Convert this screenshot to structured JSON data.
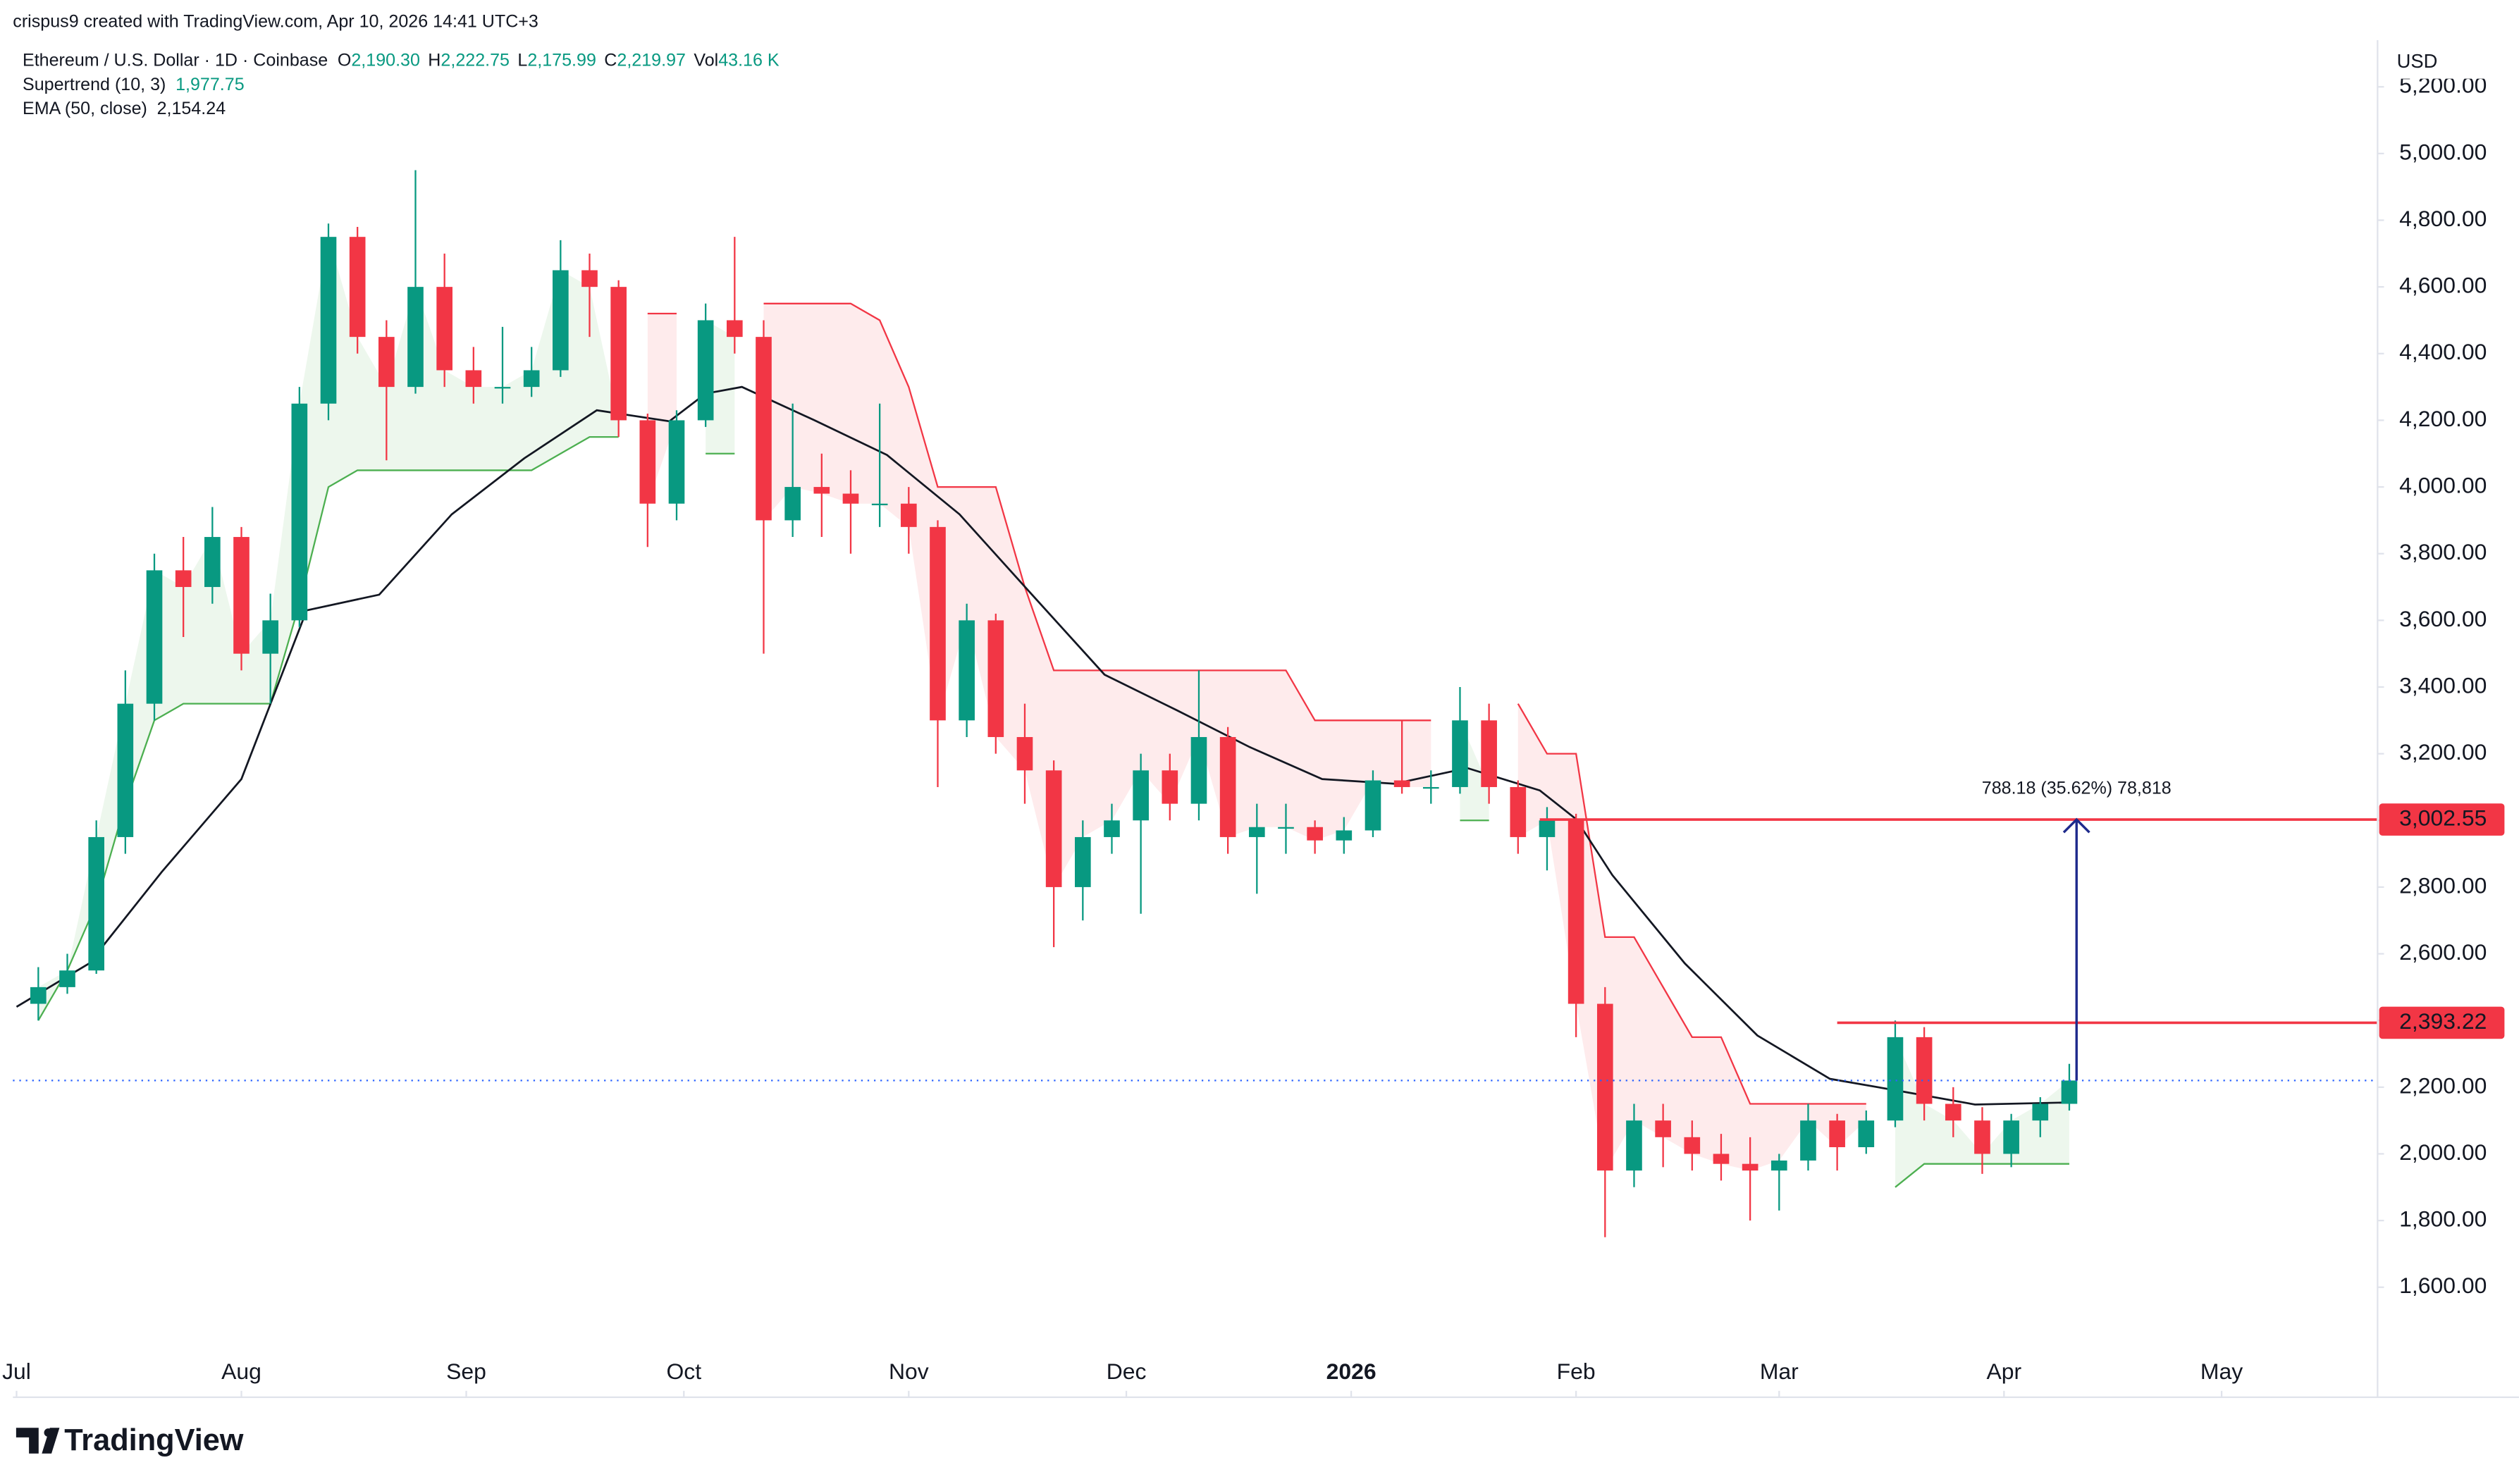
{
  "header": {
    "text": "crispus9 created with TradingView.com, Apr 10, 2026 14:41 UTC+3"
  },
  "footer": {
    "brand": "TradingView"
  },
  "chart_data": {
    "type": "candlestick",
    "title": "Ethereum / U.S. Dollar · 1D · Coinbase",
    "currency": "USD",
    "ohlc_legend": [
      {
        "key": "O",
        "value": "2,190.30"
      },
      {
        "key": "H",
        "value": "2,222.75"
      },
      {
        "key": "L",
        "value": "2,175.99"
      },
      {
        "key": "C",
        "value": "2,219.97"
      },
      {
        "key": "Vol",
        "value": "43.16 K"
      }
    ],
    "up_color": "#089981",
    "down_color": "#f23645",
    "x": [
      3,
      7,
      11,
      15,
      19,
      23,
      27,
      31,
      35,
      39,
      43,
      47,
      51,
      55,
      59,
      63,
      67,
      71,
      75,
      79,
      83,
      87,
      91,
      95,
      99,
      103,
      107,
      111,
      115,
      119,
      123,
      127,
      131,
      135,
      139,
      143,
      147,
      151,
      155,
      159,
      163,
      167,
      171,
      175,
      179,
      183,
      187,
      191,
      195,
      199,
      203,
      207,
      211,
      215,
      219,
      223,
      227,
      231,
      235,
      239,
      243,
      247,
      251,
      255,
      259,
      263,
      267,
      271,
      275,
      279,
      283
    ],
    "open": [
      2450,
      2500,
      2550,
      2950,
      3350,
      3750,
      3700,
      3850,
      3500,
      3600,
      4250,
      4750,
      4450,
      4300,
      4600,
      4350,
      4300,
      4300,
      4350,
      4650,
      4600,
      4200,
      3950,
      4200,
      4500,
      4450,
      3900,
      4000,
      3980,
      3950,
      3950,
      3880,
      3300,
      3600,
      3250,
      3150,
      2800,
      2950,
      3000,
      3150,
      3050,
      3250,
      2950,
      2980,
      2980,
      2940,
      2970,
      3120,
      3100,
      3100,
      3300,
      3100,
      2950,
      3000,
      2450,
      1950,
      2100,
      2050,
      2000,
      1970,
      1950,
      1980,
      2100,
      2020,
      2100,
      2350,
      2150,
      2100,
      2000,
      2100,
      2150
    ],
    "high": [
      2560,
      2600,
      3000,
      3450,
      3800,
      3850,
      3940,
      3880,
      3680,
      4300,
      4790,
      4780,
      4500,
      4950,
      4700,
      4420,
      4480,
      4420,
      4740,
      4700,
      4620,
      4220,
      4230,
      4550,
      4750,
      4500,
      4250,
      4100,
      4050,
      4250,
      4000,
      3900,
      3650,
      3620,
      3350,
      3180,
      3000,
      3050,
      3200,
      3200,
      3450,
      3280,
      3050,
      3050,
      3000,
      3010,
      3150,
      3300,
      3150,
      3400,
      3350,
      3120,
      3040,
      3020,
      2500,
      2150,
      2150,
      2100,
      2060,
      2050,
      2000,
      2150,
      2120,
      2130,
      2400,
      2380,
      2200,
      2140,
      2120,
      2170,
      2270
    ],
    "low": [
      2400,
      2480,
      2540,
      2900,
      3300,
      3550,
      3650,
      3450,
      3350,
      3580,
      4200,
      4400,
      4080,
      4280,
      4300,
      4250,
      4250,
      4270,
      4330,
      4450,
      4150,
      3820,
      3900,
      4180,
      4400,
      3500,
      3850,
      3850,
      3800,
      3880,
      3800,
      3100,
      3250,
      3200,
      3050,
      2620,
      2700,
      2900,
      2720,
      3000,
      3000,
      2900,
      2780,
      2900,
      2900,
      2900,
      2950,
      3080,
      3050,
      3080,
      3050,
      2900,
      2850,
      2350,
      1750,
      1900,
      1960,
      1950,
      1920,
      1800,
      1830,
      1950,
      1950,
      2000,
      2080,
      2100,
      2050,
      1940,
      1960,
      2050,
      2130
    ],
    "close": [
      2500,
      2550,
      2950,
      3350,
      3750,
      3700,
      3850,
      3500,
      3600,
      4250,
      4750,
      4450,
      4300,
      4600,
      4350,
      4300,
      4300,
      4350,
      4650,
      4600,
      4200,
      3950,
      4200,
      4500,
      4450,
      3900,
      4000,
      3980,
      3950,
      3950,
      3880,
      3300,
      3600,
      3250,
      3150,
      2800,
      2950,
      3000,
      3150,
      3050,
      3250,
      2950,
      2980,
      2980,
      2940,
      2970,
      3120,
      3100,
      3100,
      3300,
      3100,
      2950,
      3000,
      2450,
      1950,
      2100,
      2050,
      2000,
      1970,
      1950,
      1980,
      2100,
      2020,
      2100,
      2350,
      2150,
      2100,
      2000,
      2100,
      2150,
      2219.97
    ],
    "supertrend": {
      "name": "Supertrend (10, 3)",
      "value_label": "1,977.75",
      "up_color": "#4caf50",
      "down_color": "#f23645",
      "up": [
        2400,
        2550,
        2750,
        3050,
        3300,
        3350,
        3350,
        3350,
        3350,
        3650,
        4000,
        4050,
        4050,
        4050,
        4050,
        4050,
        4050,
        4050,
        4100,
        4150,
        4150,
        null,
        null,
        4100,
        4100,
        null,
        null,
        null,
        null,
        null,
        null,
        null,
        null,
        null,
        null,
        null,
        null,
        null,
        null,
        null,
        null,
        null,
        null,
        null,
        null,
        null,
        null,
        null,
        null,
        3000,
        3000,
        null,
        null,
        null,
        null,
        null,
        null,
        null,
        null,
        null,
        null,
        null,
        null,
        null,
        1900,
        1970,
        1970,
        1970,
        1970,
        1970,
        1970
      ],
      "down": [
        null,
        null,
        null,
        null,
        null,
        null,
        null,
        null,
        null,
        null,
        null,
        null,
        null,
        null,
        null,
        null,
        null,
        null,
        null,
        null,
        null,
        4520,
        4520,
        null,
        null,
        4550,
        4550,
        4550,
        4550,
        4500,
        4300,
        4000,
        4000,
        4000,
        3700,
        3450,
        3450,
        3450,
        3450,
        3450,
        3450,
        3450,
        3450,
        3450,
        3300,
        3300,
        3300,
        3300,
        3300,
        null,
        null,
        3350,
        3200,
        3200,
        2650,
        2650,
        2500,
        2350,
        2350,
        2150,
        2150,
        2150,
        2150,
        2150,
        null,
        null,
        null,
        null,
        null,
        null,
        null
      ]
    },
    "ema": {
      "name": "EMA (50, close)",
      "value_label": "2,154.24",
      "color": "#131722",
      "x": [
        0,
        10,
        20,
        31,
        40,
        50,
        60,
        70,
        80,
        90,
        95,
        100,
        110,
        120,
        130,
        140,
        150,
        160,
        170,
        180,
        190,
        200,
        210,
        215,
        220,
        230,
        240,
        250,
        260,
        270,
        283
      ],
      "values": [
        2441,
        2571,
        2845,
        3124,
        3630,
        3677,
        3918,
        4086,
        4230,
        4197,
        4280,
        4300,
        4200,
        4096,
        3918,
        3677,
        3437,
        3330,
        3220,
        3124,
        3110,
        3157,
        3090,
        3004,
        2836,
        2571,
        2355,
        2225,
        2187,
        2148,
        2154.24
      ]
    },
    "levels": [
      {
        "value": 3002.55,
        "label": "3,002.55",
        "x_start": 210,
        "color": "#f23645"
      },
      {
        "value": 2393.22,
        "label": "2,393.22",
        "x_start": 251,
        "color": "#f23645"
      }
    ],
    "last_price_color": "#2962ff",
    "measure": {
      "label": "788.18 (35.62%) 78,818",
      "x": 284,
      "color": "#1e2a8c"
    },
    "xlim": [
      -0.5,
      325.5
    ],
    "ylim": [
      1270,
      5340
    ],
    "xticks": [
      {
        "value": 0,
        "label": "Jul"
      },
      {
        "value": 31,
        "label": "Aug"
      },
      {
        "value": 62,
        "label": "Sep"
      },
      {
        "value": 92,
        "label": "Oct"
      },
      {
        "value": 123,
        "label": "Nov"
      },
      {
        "value": 153,
        "label": "Dec"
      },
      {
        "value": 184,
        "label": "2026"
      },
      {
        "value": 215,
        "label": "Feb"
      },
      {
        "value": 243,
        "label": "Mar"
      },
      {
        "value": 274,
        "label": "Apr"
      },
      {
        "value": 304,
        "label": "May"
      }
    ],
    "yticks": [
      {
        "value": 1600,
        "label": "1,600.00"
      },
      {
        "value": 1800,
        "label": "1,800.00"
      },
      {
        "value": 2000,
        "label": "2,000.00"
      },
      {
        "value": 2200,
        "label": "2,200.00"
      },
      {
        "value": 2400,
        "label": "2,400.00"
      },
      {
        "value": 2600,
        "label": "2,600.00"
      },
      {
        "value": 2800,
        "label": "2,800.00"
      },
      {
        "value": 3000,
        "label": "3,000.00"
      },
      {
        "value": 3200,
        "label": "3,200.00"
      },
      {
        "value": 3400,
        "label": "3,400.00"
      },
      {
        "value": 3600,
        "label": "3,600.00"
      },
      {
        "value": 3800,
        "label": "3,800.00"
      },
      {
        "value": 4000,
        "label": "4,000.00"
      },
      {
        "value": 4200,
        "label": "4,200.00"
      },
      {
        "value": 4400,
        "label": "4,400.00"
      },
      {
        "value": 4600,
        "label": "4,600.00"
      },
      {
        "value": 4800,
        "label": "4,800.00"
      },
      {
        "value": 5000,
        "label": "5,000.00"
      },
      {
        "value": 5200,
        "label": "5,200.00"
      }
    ],
    "grid": false
  }
}
